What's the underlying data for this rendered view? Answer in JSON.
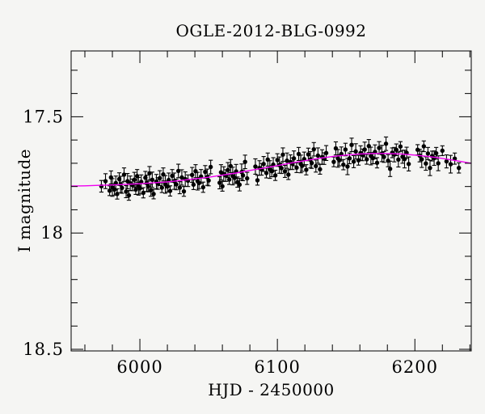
{
  "figure": {
    "background": "#f5f5f3"
  },
  "chart_data": {
    "type": "scatter",
    "title": "OGLE-2012-BLG-0992",
    "xlabel": "HJD - 2450000",
    "ylabel": "I magnitude",
    "y_axis_inverted": true,
    "xlim": [
      5950,
      6241
    ],
    "ylim": [
      17.217,
      18.507
    ],
    "x_ticks": [
      {
        "v": 6000,
        "label": "6000"
      },
      {
        "v": 6100,
        "label": "6100"
      },
      {
        "v": 6200,
        "label": "6200"
      }
    ],
    "x_minor_step": 20,
    "y_ticks": [
      {
        "v": 17.5,
        "label": "17.5"
      },
      {
        "v": 18.0,
        "label": "18"
      },
      {
        "v": 18.5,
        "label": "18.5"
      }
    ],
    "y_minor_step": 0.1,
    "grid": false,
    "legend": "none",
    "colors": {
      "points": "#000000",
      "model_curve": "#f000f0",
      "frame": "#000000",
      "text": "#000000"
    },
    "model_curve": {
      "name": "microlensing-model",
      "t": [
        5950,
        5960,
        5970,
        5980,
        5990,
        6000,
        6010,
        6020,
        6030,
        6040,
        6050,
        6060,
        6070,
        6080,
        6090,
        6100,
        6110,
        6120,
        6130,
        6140,
        6150,
        6160,
        6170,
        6180,
        6190,
        6200,
        6210,
        6220,
        6230,
        6241
      ],
      "mag": [
        17.798,
        17.797,
        17.795,
        17.793,
        17.791,
        17.788,
        17.784,
        17.78,
        17.774,
        17.767,
        17.76,
        17.751,
        17.742,
        17.731,
        17.721,
        17.71,
        17.699,
        17.689,
        17.679,
        17.671,
        17.665,
        17.66,
        17.658,
        17.658,
        17.66,
        17.665,
        17.671,
        17.679,
        17.689,
        17.7
      ]
    },
    "points_format": [
      "hjd_minus_2450000",
      "i_magnitude",
      "error"
    ],
    "points": [
      [
        5972,
        17.799,
        0.025
      ],
      [
        5975,
        17.777,
        0.032
      ],
      [
        5978,
        17.818,
        0.021
      ],
      [
        5979,
        17.761,
        0.028
      ],
      [
        5980,
        17.804,
        0.038
      ],
      [
        5981.5,
        17.813,
        0.024
      ],
      [
        5982.5,
        17.785,
        0.03
      ],
      [
        5983.5,
        17.832,
        0.022
      ],
      [
        5985,
        17.768,
        0.027
      ],
      [
        5986,
        17.791,
        0.035
      ],
      [
        5987,
        17.806,
        0.023
      ],
      [
        5988.5,
        17.749,
        0.029
      ],
      [
        5990,
        17.822,
        0.026
      ],
      [
        5991,
        17.777,
        0.033
      ],
      [
        5992,
        17.838,
        0.021
      ],
      [
        5993,
        17.786,
        0.031
      ],
      [
        5994.5,
        17.793,
        0.025
      ],
      [
        5996,
        17.771,
        0.032
      ],
      [
        5997,
        17.813,
        0.021
      ],
      [
        5998,
        17.755,
        0.028
      ],
      [
        5999,
        17.799,
        0.038
      ],
      [
        6000,
        17.808,
        0.024
      ],
      [
        6001,
        17.78,
        0.03
      ],
      [
        6002.5,
        17.827,
        0.022
      ],
      [
        6004,
        17.762,
        0.027
      ],
      [
        6005,
        17.786,
        0.035
      ],
      [
        6006,
        17.8,
        0.023
      ],
      [
        6007,
        17.743,
        0.029
      ],
      [
        6008,
        17.816,
        0.026
      ],
      [
        6009,
        17.771,
        0.033
      ],
      [
        6010,
        17.832,
        0.021
      ],
      [
        6012,
        17.779,
        0.031
      ],
      [
        6013,
        17.787,
        0.025
      ],
      [
        6014.5,
        17.764,
        0.032
      ],
      [
        6016,
        17.805,
        0.021
      ],
      [
        6017,
        17.748,
        0.028
      ],
      [
        6018.5,
        17.791,
        0.038
      ],
      [
        6020,
        17.8,
        0.024
      ],
      [
        6021,
        17.772,
        0.03
      ],
      [
        6022,
        17.819,
        0.022
      ],
      [
        6023.5,
        17.754,
        0.027
      ],
      [
        6025,
        17.777,
        0.035
      ],
      [
        6026.5,
        17.791,
        0.023
      ],
      [
        6028,
        17.733,
        0.029
      ],
      [
        6029,
        17.805,
        0.026
      ],
      [
        6030.5,
        17.761,
        0.033
      ],
      [
        6032,
        17.821,
        0.021
      ],
      [
        6033,
        17.768,
        0.031
      ],
      [
        6035,
        17.775,
        0.025
      ],
      [
        6038,
        17.75,
        0.032
      ],
      [
        6039,
        17.792,
        0.021
      ],
      [
        6040.5,
        17.734,
        0.028
      ],
      [
        6042,
        17.777,
        0.038
      ],
      [
        6043,
        17.785,
        0.024
      ],
      [
        6044.5,
        17.757,
        0.03
      ],
      [
        6046,
        17.803,
        0.022
      ],
      [
        6047.5,
        17.737,
        0.027
      ],
      [
        6049,
        17.76,
        0.035
      ],
      [
        6050,
        17.774,
        0.023
      ],
      [
        6051.5,
        17.716,
        0.029
      ],
      [
        6058,
        17.784,
        0.026
      ],
      [
        6059,
        17.739,
        0.033
      ],
      [
        6060,
        17.799,
        0.021
      ],
      [
        6061,
        17.746,
        0.031
      ],
      [
        6062.5,
        17.753,
        0.025
      ],
      [
        6064,
        17.729,
        0.032
      ],
      [
        6065,
        17.77,
        0.021
      ],
      [
        6066,
        17.712,
        0.028
      ],
      [
        6067.5,
        17.755,
        0.038
      ],
      [
        6069,
        17.763,
        0.024
      ],
      [
        6070,
        17.735,
        0.03
      ],
      [
        6071,
        17.781,
        0.022
      ],
      [
        6072.5,
        17.792,
        0.027
      ],
      [
        6074,
        17.738,
        0.035
      ],
      [
        6075,
        17.752,
        0.023
      ],
      [
        6076.5,
        17.694,
        0.029
      ],
      [
        6078,
        17.765,
        0.026
      ],
      [
        6084,
        17.714,
        0.033
      ],
      [
        6085.5,
        17.773,
        0.021
      ],
      [
        6087,
        17.72,
        0.031
      ],
      [
        6088.5,
        17.726,
        0.025
      ],
      [
        6090,
        17.703,
        0.032
      ],
      [
        6092,
        17.742,
        0.021
      ],
      [
        6093,
        17.684,
        0.028
      ],
      [
        6094.5,
        17.727,
        0.038
      ],
      [
        6096,
        17.734,
        0.024
      ],
      [
        6097,
        17.706,
        0.03
      ],
      [
        6098.5,
        17.752,
        0.022
      ],
      [
        6100,
        17.686,
        0.027
      ],
      [
        6101.5,
        17.708,
        0.035
      ],
      [
        6103,
        17.721,
        0.023
      ],
      [
        6104,
        17.663,
        0.029
      ],
      [
        6105.5,
        17.735,
        0.026
      ],
      [
        6107,
        17.689,
        0.033
      ],
      [
        6108,
        17.749,
        0.021
      ],
      [
        6109.5,
        17.695,
        0.031
      ],
      [
        6111,
        17.702,
        0.025
      ],
      [
        6112,
        17.679,
        0.032
      ],
      [
        6114,
        17.719,
        0.021
      ],
      [
        6115.5,
        17.66,
        0.028
      ],
      [
        6117,
        17.703,
        0.038
      ],
      [
        6118,
        17.711,
        0.024
      ],
      [
        6119.5,
        17.682,
        0.03
      ],
      [
        6121,
        17.728,
        0.022
      ],
      [
        6122.5,
        17.662,
        0.027
      ],
      [
        6124,
        17.685,
        0.035
      ],
      [
        6125,
        17.699,
        0.023
      ],
      [
        6126.5,
        17.64,
        0.029
      ],
      [
        6128,
        17.712,
        0.026
      ],
      [
        6129.5,
        17.667,
        0.033
      ],
      [
        6131,
        17.726,
        0.021
      ],
      [
        6132.5,
        17.673,
        0.031
      ],
      [
        6134,
        17.68,
        0.025
      ],
      [
        6135.5,
        17.656,
        0.032
      ],
      [
        6141,
        17.694,
        0.021
      ],
      [
        6142.5,
        17.636,
        0.028
      ],
      [
        6144,
        17.679,
        0.038
      ],
      [
        6145,
        17.687,
        0.024
      ],
      [
        6146.5,
        17.66,
        0.03
      ],
      [
        6148,
        17.706,
        0.022
      ],
      [
        6149.5,
        17.641,
        0.027
      ],
      [
        6151,
        17.714,
        0.035
      ],
      [
        6152.5,
        17.679,
        0.023
      ],
      [
        6154,
        17.621,
        0.029
      ],
      [
        6155.5,
        17.693,
        0.026
      ],
      [
        6157,
        17.649,
        0.033
      ],
      [
        6159,
        17.687,
        0.021
      ],
      [
        6160.5,
        17.656,
        0.031
      ],
      [
        6162,
        17.664,
        0.025
      ],
      [
        6163.5,
        17.641,
        0.032
      ],
      [
        6165,
        17.683,
        0.021
      ],
      [
        6166.5,
        17.626,
        0.028
      ],
      [
        6168,
        17.669,
        0.038
      ],
      [
        6169.5,
        17.678,
        0.024
      ],
      [
        6171,
        17.651,
        0.03
      ],
      [
        6172.5,
        17.698,
        0.022
      ],
      [
        6174,
        17.634,
        0.027
      ],
      [
        6176,
        17.658,
        0.035
      ],
      [
        6177.5,
        17.673,
        0.023
      ],
      [
        6179,
        17.616,
        0.029
      ],
      [
        6180.5,
        17.689,
        0.026
      ],
      [
        6182,
        17.724,
        0.033
      ],
      [
        6183.5,
        17.655,
        0.021
      ],
      [
        6185,
        17.663,
        0.031
      ],
      [
        6186.5,
        17.642,
        0.025
      ],
      [
        6188,
        17.684,
        0.032
      ],
      [
        6189.5,
        17.628,
        0.021
      ],
      [
        6191,
        17.672,
        0.028
      ],
      [
        6192.5,
        17.682,
        0.038
      ],
      [
        6194,
        17.655,
        0.024
      ],
      [
        6195.5,
        17.703,
        0.03
      ],
      [
        6202,
        17.642,
        0.022
      ],
      [
        6203.5,
        17.667,
        0.027
      ],
      [
        6205,
        17.683,
        0.035
      ],
      [
        6206.5,
        17.627,
        0.023
      ],
      [
        6208,
        17.701,
        0.029
      ],
      [
        6209.5,
        17.658,
        0.026
      ],
      [
        6211,
        17.72,
        0.033
      ],
      [
        6212.5,
        17.669,
        0.021
      ],
      [
        6214,
        17.678,
        0.031
      ],
      [
        6215.5,
        17.657,
        0.025
      ],
      [
        6217,
        17.7,
        0.032
      ],
      [
        6220,
        17.646,
        0.021
      ],
      [
        6223,
        17.692,
        0.028
      ],
      [
        6226,
        17.704,
        0.038
      ],
      [
        6229,
        17.68,
        0.024
      ],
      [
        6232,
        17.72,
        0.022
      ]
    ]
  }
}
